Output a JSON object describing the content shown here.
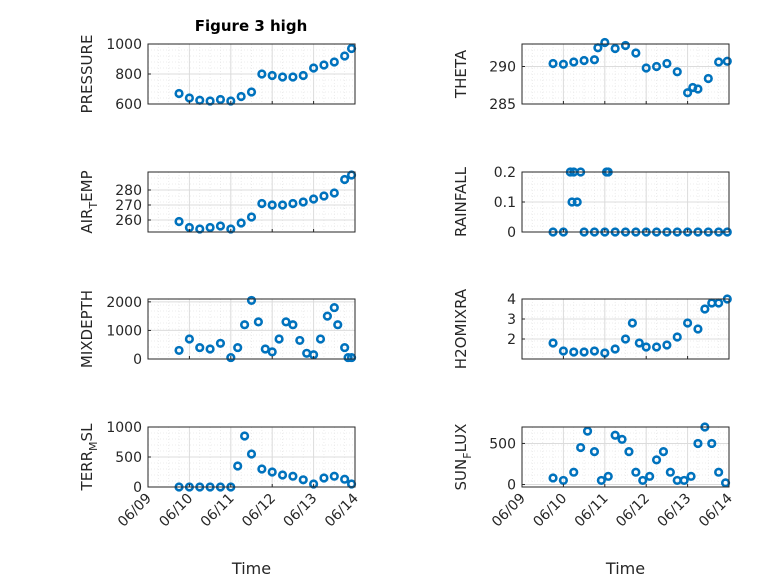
{
  "figure": {
    "title": "Figure 3 high"
  },
  "colors": {
    "marker": "#0072BD"
  },
  "chart_data": [
    {
      "type": "scatter",
      "title": "Figure 3 high",
      "xlabel": "",
      "ylabel": "PRESSURE",
      "ylabel_sub": "",
      "ylabel_end": "",
      "xlim": [
        "2023-06-09",
        "2023-06-14"
      ],
      "xticks": [
        "06/09",
        "06/10",
        "06/11",
        "06/12",
        "06/13",
        "06/14"
      ],
      "ylim": [
        600,
        1000
      ],
      "yticks": [
        600,
        800,
        1000
      ],
      "grid": true,
      "x": [
        "06/09 18:00",
        "06/10 00:00",
        "06/10 06:00",
        "06/10 12:00",
        "06/10 18:00",
        "06/11 00:00",
        "06/11 06:00",
        "06/11 12:00",
        "06/11 18:00",
        "06/12 00:00",
        "06/12 06:00",
        "06/12 12:00",
        "06/12 18:00",
        "06/13 00:00",
        "06/13 06:00",
        "06/13 12:00",
        "06/13 18:00",
        "06/13 22:00"
      ],
      "y": [
        670,
        640,
        625,
        620,
        630,
        620,
        650,
        680,
        800,
        790,
        780,
        780,
        790,
        840,
        860,
        880,
        920,
        970
      ]
    },
    {
      "type": "scatter",
      "title": "",
      "xlabel": "",
      "ylabel": "THETA",
      "ylabel_sub": "",
      "ylabel_end": "",
      "xlim": [
        "2023-06-09",
        "2023-06-14"
      ],
      "xticks": [
        "06/09",
        "06/10",
        "06/11",
        "06/12",
        "06/13",
        "06/14"
      ],
      "ylim": [
        285,
        293
      ],
      "yticks": [
        285,
        290
      ],
      "grid": true,
      "x": [
        "06/09 18:00",
        "06/10 00:00",
        "06/10 06:00",
        "06/10 12:00",
        "06/10 18:00",
        "06/10 20:00",
        "06/11 00:00",
        "06/11 06:00",
        "06/11 12:00",
        "06/11 18:00",
        "06/12 00:00",
        "06/12 06:00",
        "06/12 12:00",
        "06/12 18:00",
        "06/13 00:00",
        "06/13 03:00",
        "06/13 06:00",
        "06/13 12:00",
        "06/13 18:00",
        "06/13 23:00"
      ],
      "y": [
        290.4,
        290.3,
        290.6,
        290.8,
        290.9,
        292.5,
        293.2,
        292.4,
        292.8,
        291.8,
        289.8,
        290.0,
        290.4,
        289.3,
        286.5,
        287.2,
        287.0,
        288.4,
        290.6,
        290.7
      ]
    },
    {
      "type": "scatter",
      "title": "",
      "xlabel": "",
      "ylabel": "AIR",
      "ylabel_sub": "T",
      "ylabel_end": "EMP",
      "xlim": [
        "2023-06-09",
        "2023-06-14"
      ],
      "xticks": [
        "06/09",
        "06/10",
        "06/11",
        "06/12",
        "06/13",
        "06/14"
      ],
      "ylim": [
        252,
        292
      ],
      "yticks": [
        260,
        270,
        280
      ],
      "grid": true,
      "x": [
        "06/09 18:00",
        "06/10 00:00",
        "06/10 06:00",
        "06/10 12:00",
        "06/10 18:00",
        "06/11 00:00",
        "06/11 06:00",
        "06/11 12:00",
        "06/11 18:00",
        "06/12 00:00",
        "06/12 06:00",
        "06/12 12:00",
        "06/12 18:00",
        "06/13 00:00",
        "06/13 06:00",
        "06/13 12:00",
        "06/13 18:00",
        "06/13 22:00"
      ],
      "y": [
        259,
        255,
        254,
        255,
        256,
        254,
        258,
        262,
        271,
        270,
        270,
        271,
        272,
        274,
        276,
        278,
        287,
        290
      ]
    },
    {
      "type": "scatter",
      "title": "",
      "xlabel": "",
      "ylabel": "RAINFALL",
      "ylabel_sub": "",
      "ylabel_end": "",
      "xlim": [
        "2023-06-09",
        "2023-06-14"
      ],
      "xticks": [
        "06/09",
        "06/10",
        "06/11",
        "06/12",
        "06/13",
        "06/14"
      ],
      "ylim": [
        0,
        0.2
      ],
      "yticks": [
        0,
        0.1,
        0.2
      ],
      "grid": true,
      "x": [
        "06/09 18:00",
        "06/10 00:00",
        "06/10 04:00",
        "06/10 05:00",
        "06/10 06:00",
        "06/10 08:00",
        "06/10 10:00",
        "06/10 12:00",
        "06/10 18:00",
        "06/11 00:00",
        "06/11 01:00",
        "06/11 02:00",
        "06/11 06:00",
        "06/11 12:00",
        "06/11 18:00",
        "06/12 00:00",
        "06/12 06:00",
        "06/12 12:00",
        "06/12 18:00",
        "06/13 00:00",
        "06/13 06:00",
        "06/13 12:00",
        "06/13 18:00",
        "06/13 23:00"
      ],
      "y": [
        0,
        0,
        0.2,
        0.1,
        0.2,
        0.1,
        0.2,
        0,
        0,
        0,
        0.2,
        0.2,
        0,
        0,
        0,
        0,
        0,
        0,
        0,
        0,
        0,
        0,
        0,
        0
      ]
    },
    {
      "type": "scatter",
      "title": "",
      "xlabel": "",
      "ylabel": "MIXDEPTH",
      "ylabel_sub": "",
      "ylabel_end": "",
      "xlim": [
        "2023-06-09",
        "2023-06-14"
      ],
      "xticks": [
        "06/09",
        "06/10",
        "06/11",
        "06/12",
        "06/13",
        "06/14"
      ],
      "ylim": [
        0,
        2100
      ],
      "yticks": [
        0,
        1000,
        2000
      ],
      "grid": true,
      "x": [
        "06/09 18:00",
        "06/10 00:00",
        "06/10 06:00",
        "06/10 12:00",
        "06/10 18:00",
        "06/11 00:00",
        "06/11 04:00",
        "06/11 08:00",
        "06/11 12:00",
        "06/11 16:00",
        "06/11 20:00",
        "06/12 00:00",
        "06/12 04:00",
        "06/12 08:00",
        "06/12 12:00",
        "06/12 16:00",
        "06/12 20:00",
        "06/13 00:00",
        "06/13 04:00",
        "06/13 08:00",
        "06/13 12:00",
        "06/13 14:00",
        "06/13 18:00",
        "06/13 20:00",
        "06/13 22:00"
      ],
      "y": [
        300,
        700,
        400,
        350,
        550,
        50,
        400,
        1200,
        2050,
        1300,
        350,
        250,
        700,
        1300,
        1200,
        650,
        200,
        150,
        700,
        1500,
        1800,
        1200,
        400,
        50,
        50
      ]
    },
    {
      "type": "scatter",
      "title": "",
      "xlabel": "",
      "ylabel": "H2OMIXRA",
      "ylabel_sub": "",
      "ylabel_end": "",
      "xlim": [
        "2023-06-09",
        "2023-06-14"
      ],
      "xticks": [
        "06/09",
        "06/10",
        "06/11",
        "06/12",
        "06/13",
        "06/14"
      ],
      "ylim": [
        1,
        4
      ],
      "yticks": [
        2,
        3,
        4
      ],
      "grid": true,
      "x": [
        "06/09 18:00",
        "06/10 00:00",
        "06/10 06:00",
        "06/10 12:00",
        "06/10 18:00",
        "06/11 00:00",
        "06/11 06:00",
        "06/11 12:00",
        "06/11 16:00",
        "06/11 20:00",
        "06/12 00:00",
        "06/12 06:00",
        "06/12 12:00",
        "06/12 18:00",
        "06/13 00:00",
        "06/13 06:00",
        "06/13 10:00",
        "06/13 14:00",
        "06/13 18:00",
        "06/13 23:00"
      ],
      "y": [
        1.8,
        1.4,
        1.35,
        1.35,
        1.4,
        1.3,
        1.5,
        2.0,
        2.8,
        1.8,
        1.6,
        1.6,
        1.7,
        2.1,
        2.8,
        2.5,
        3.5,
        3.8,
        3.8,
        4.0
      ]
    },
    {
      "type": "scatter",
      "title": "",
      "xlabel": "Time",
      "ylabel": "TERR",
      "ylabel_sub": "M",
      "ylabel_end": "SL",
      "xlim": [
        "2023-06-09",
        "2023-06-14"
      ],
      "xticks": [
        "06/09",
        "06/10",
        "06/11",
        "06/12",
        "06/13",
        "06/14"
      ],
      "ylim": [
        0,
        1000
      ],
      "yticks": [
        0,
        500,
        1000
      ],
      "grid": true,
      "x": [
        "06/09 18:00",
        "06/10 00:00",
        "06/10 06:00",
        "06/10 12:00",
        "06/10 18:00",
        "06/11 00:00",
        "06/11 04:00",
        "06/11 08:00",
        "06/11 12:00",
        "06/11 18:00",
        "06/12 00:00",
        "06/12 06:00",
        "06/12 12:00",
        "06/12 18:00",
        "06/13 00:00",
        "06/13 06:00",
        "06/13 12:00",
        "06/13 18:00",
        "06/13 22:00"
      ],
      "y": [
        0,
        0,
        0,
        0,
        0,
        0,
        350,
        850,
        550,
        300,
        250,
        200,
        180,
        120,
        50,
        150,
        180,
        130,
        50
      ]
    },
    {
      "type": "scatter",
      "title": "",
      "xlabel": "Time",
      "ylabel": "SUN",
      "ylabel_sub": "F",
      "ylabel_end": "LUX",
      "xlim": [
        "2023-06-09",
        "2023-06-14"
      ],
      "xticks": [
        "06/09",
        "06/10",
        "06/11",
        "06/12",
        "06/13",
        "06/14"
      ],
      "ylim": [
        -30,
        700
      ],
      "yticks": [
        0,
        500
      ],
      "grid": true,
      "x": [
        "06/09 18:00",
        "06/10 00:00",
        "06/10 06:00",
        "06/10 10:00",
        "06/10 14:00",
        "06/10 18:00",
        "06/10 22:00",
        "06/11 02:00",
        "06/11 06:00",
        "06/11 10:00",
        "06/11 14:00",
        "06/11 18:00",
        "06/11 22:00",
        "06/12 02:00",
        "06/12 06:00",
        "06/12 10:00",
        "06/12 14:00",
        "06/12 18:00",
        "06/12 22:00",
        "06/13 02:00",
        "06/13 06:00",
        "06/13 10:00",
        "06/13 14:00",
        "06/13 18:00",
        "06/13 22:00"
      ],
      "y": [
        80,
        50,
        150,
        450,
        650,
        400,
        50,
        100,
        600,
        550,
        400,
        150,
        50,
        100,
        300,
        400,
        150,
        50,
        50,
        100,
        500,
        700,
        500,
        150,
        20
      ]
    }
  ]
}
